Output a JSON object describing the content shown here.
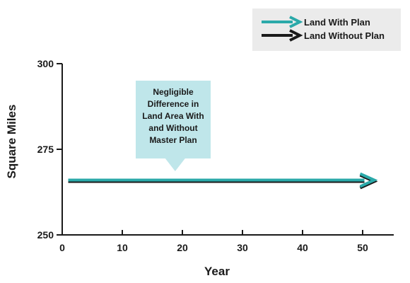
{
  "chart_data": {
    "type": "line",
    "title": "",
    "xlabel": "Year",
    "ylabel": "Square Miles",
    "xlim": [
      0,
      55
    ],
    "ylim": [
      250,
      300
    ],
    "x_ticks": [
      0,
      10,
      20,
      30,
      40,
      50
    ],
    "y_ticks": [
      250,
      275,
      300
    ],
    "grid": false,
    "legend_position": "top-right",
    "series": [
      {
        "name": "Land With Plan",
        "color": "#2aa9a9",
        "x": [
          1,
          51
        ],
        "y": [
          266,
          266
        ]
      },
      {
        "name": "Land Without Plan",
        "color": "#1a1a1a",
        "x": [
          1,
          51
        ],
        "y": [
          265.6,
          265.6
        ]
      }
    ],
    "annotation": {
      "lines": [
        "Negligible",
        "Difference in",
        "Land Area With",
        "and Without",
        "Master Plan"
      ],
      "point_x": 18.8,
      "color": "#bfe6ea"
    },
    "legend_background": "#ebebeb"
  }
}
